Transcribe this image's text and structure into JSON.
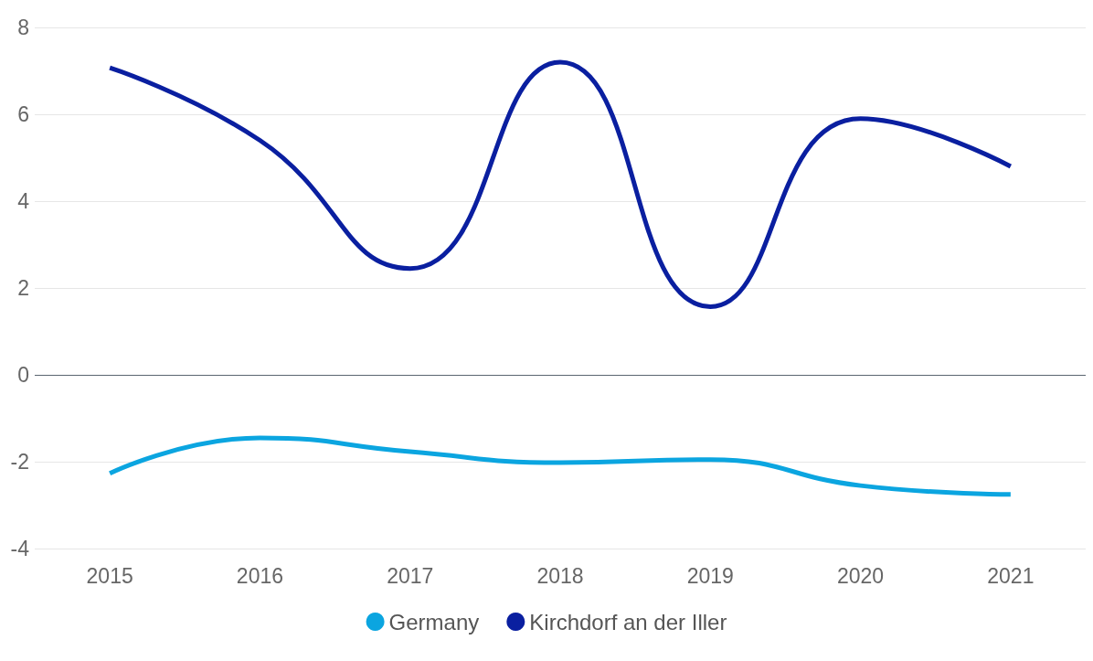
{
  "chart_data": {
    "type": "line",
    "categories": [
      "2015",
      "2016",
      "2017",
      "2018",
      "2019",
      "2020",
      "2021"
    ],
    "series": [
      {
        "name": "Germany",
        "color": "#0ba5e0",
        "values": [
          -2.27,
          -1.45,
          -1.77,
          -2.02,
          -1.95,
          -2.55,
          -2.75
        ]
      },
      {
        "name": "Kirchdorf an der Iller",
        "color": "#0a1fa0",
        "values": [
          7.07,
          5.4,
          2.45,
          7.2,
          1.57,
          5.9,
          4.8
        ]
      }
    ],
    "ylim": [
      -4,
      8
    ],
    "yticks": [
      -4,
      -2,
      0,
      2,
      4,
      6,
      8
    ],
    "grid": "y",
    "legend": "bottom",
    "marker": "none",
    "line_style": "solid"
  }
}
